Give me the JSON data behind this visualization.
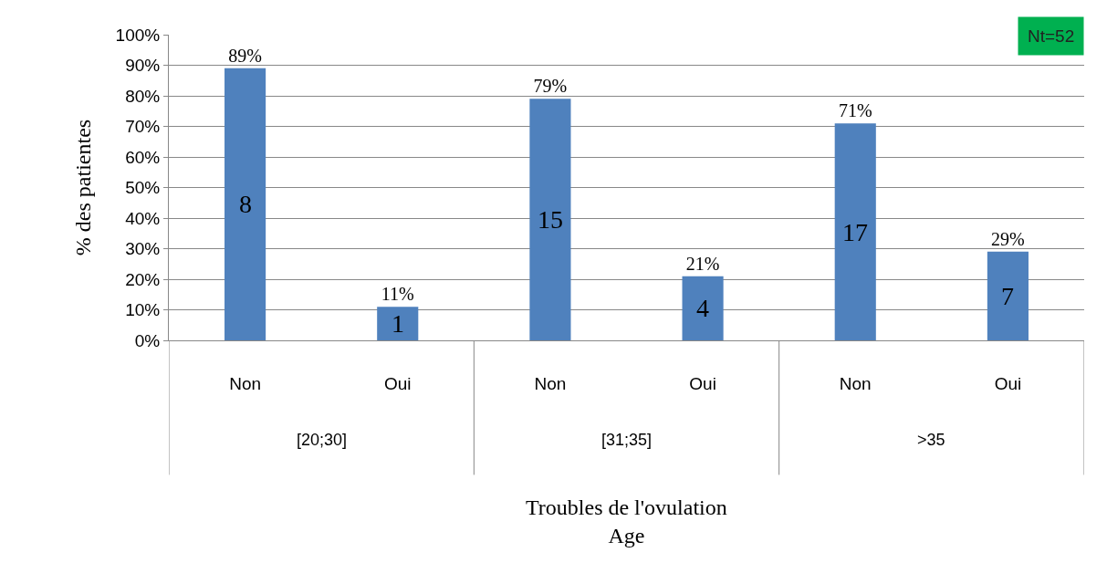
{
  "chart_data": {
    "type": "bar",
    "ylabel": "% des patientes",
    "xlabel": "Troubles de l'ovulation\nAge",
    "categories": [
      "Non",
      "Oui",
      "Non",
      "Oui",
      "Non",
      "Oui"
    ],
    "values": [
      89,
      11,
      79,
      21,
      71,
      29
    ],
    "value_labels": [
      "89%",
      "11%",
      "79%",
      "21%",
      "71%",
      "29%"
    ],
    "color": "#4f81bd",
    "ylim": [
      0,
      100
    ],
    "yticks": [
      {
        "value": 0,
        "label": "0%"
      },
      {
        "value": 10,
        "label": "10%"
      },
      {
        "value": 20,
        "label": "20%"
      },
      {
        "value": 30,
        "label": "30%"
      },
      {
        "value": 40,
        "label": "40%"
      },
      {
        "value": 50,
        "label": "50%"
      },
      {
        "value": 60,
        "label": "60%"
      },
      {
        "value": 70,
        "label": "70%"
      },
      {
        "value": 80,
        "label": "80%"
      },
      {
        "value": 90,
        "label": "90%"
      },
      {
        "value": 100,
        "label": "100%"
      }
    ],
    "grid": "y",
    "legend": false,
    "annotations": [
      "[20;30]",
      "[31;35]",
      ">35",
      "8",
      "1",
      "15",
      "4",
      "17",
      "7",
      "Nt=52"
    ]
  }
}
